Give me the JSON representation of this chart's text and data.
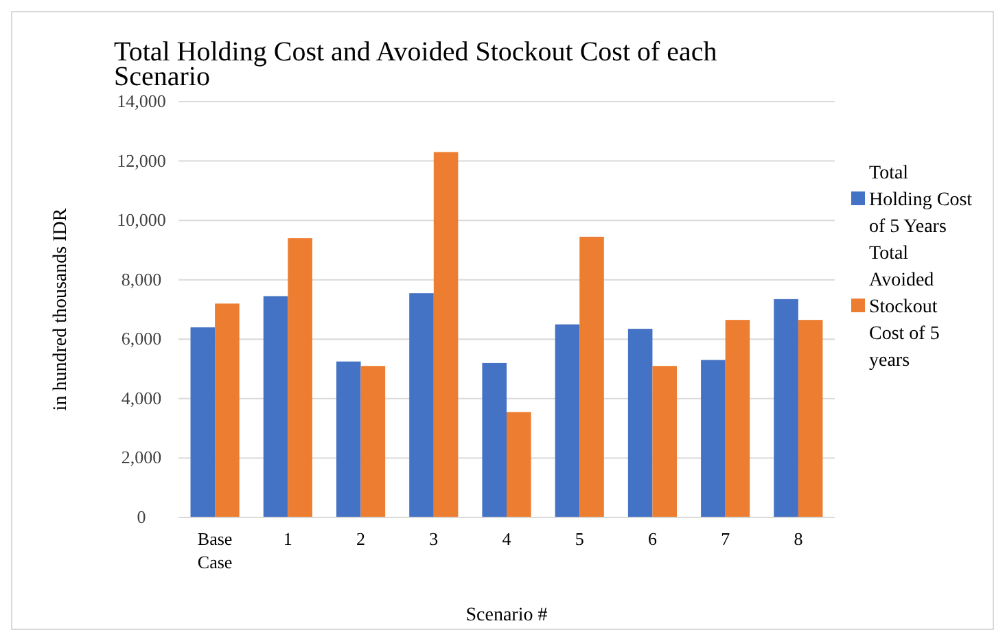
{
  "chart_data": {
    "type": "bar",
    "title": "Total Holding Cost and Avoided Stockout Cost of each Scenario",
    "xlabel": "Scenario #",
    "ylabel": "in hundred thousands IDR",
    "categories": [
      "Base Case",
      "1",
      "2",
      "3",
      "4",
      "5",
      "6",
      "7",
      "8"
    ],
    "series": [
      {
        "name": "Total Holding Cost of 5 Years",
        "color": "#4472c4",
        "values": [
          6400,
          7450,
          5250,
          7550,
          5200,
          6500,
          6350,
          5300,
          7350
        ]
      },
      {
        "name": "Total Avoided Stockout Cost of 5 years",
        "color": "#ed7d31",
        "values": [
          7200,
          9400,
          5100,
          12300,
          3550,
          9450,
          5100,
          6650,
          6650
        ]
      }
    ],
    "ylim": [
      0,
      14000
    ],
    "yticks": [
      {
        "value": 0,
        "label": "0"
      },
      {
        "value": 2000,
        "label": "2,000"
      },
      {
        "value": 4000,
        "label": "4,000"
      },
      {
        "value": 6000,
        "label": "6,000"
      },
      {
        "value": 8000,
        "label": "8,000"
      },
      {
        "value": 10000,
        "label": "10,000"
      },
      {
        "value": 12000,
        "label": "12,000"
      },
      {
        "value": 14000,
        "label": "14,000"
      }
    ],
    "grid": "y",
    "legend": "right"
  }
}
